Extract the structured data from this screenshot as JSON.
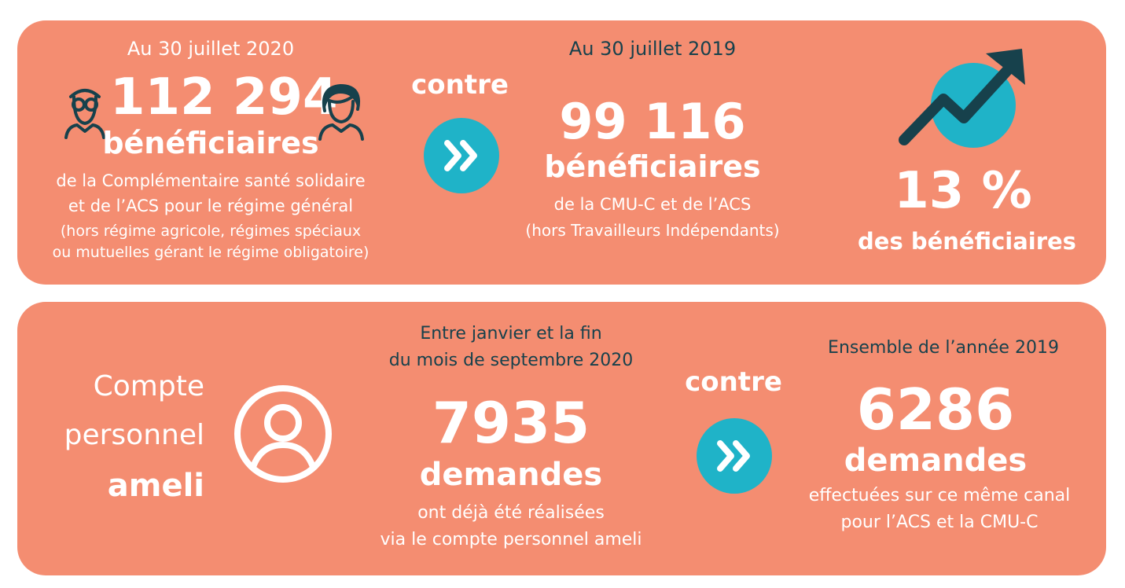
{
  "top": {
    "left": {
      "date": "Au 30 juillet 2020",
      "number": "112 294",
      "unit": "bénéficiaires",
      "desc_line1": "de la Complémentaire santé solidaire",
      "desc_line2": "et de l’ACS pour le régime général",
      "note_line1": "(hors régime agricole, régimes spéciaux",
      "note_line2": "ou mutuelles gérant le régime obligatoire)"
    },
    "contre": "contre",
    "middle": {
      "date": "Au 30 juillet 2019",
      "number": "99 116",
      "unit": "bénéficiaires",
      "desc_line1": "de la CMU-C et de l’ACS",
      "desc_line2": "(hors Travailleurs Indépendants)"
    },
    "right": {
      "percent": "13 %",
      "label": "des bénéficiaires"
    },
    "icons": [
      "man-with-glasses-icon",
      "woman-icon",
      "double-chevron-icon",
      "trend-up-arrow-icon"
    ]
  },
  "bottom": {
    "title_line1": "Compte",
    "title_line2": "personnel",
    "title_line3": "ameli",
    "middle": {
      "period_line1": "Entre janvier et la fin",
      "period_line2": "du mois de septembre 2020",
      "number": "7935",
      "unit": "demandes",
      "desc_line1": "ont déjà été réalisées",
      "desc_line2": "via le compte personnel ameli"
    },
    "contre": "contre",
    "right": {
      "period": "Ensemble de l’année 2019",
      "number": "6286",
      "unit": "demandes",
      "desc_line1": "effectuées sur ce même canal",
      "desc_line2": "pour l’ACS et la CMU-C"
    },
    "icons": [
      "user-circle-icon",
      "double-chevron-icon"
    ]
  },
  "colors": {
    "panel": "#f48d71",
    "accent": "#1fb3c8",
    "dark": "#17414c",
    "text": "#ffffff"
  }
}
